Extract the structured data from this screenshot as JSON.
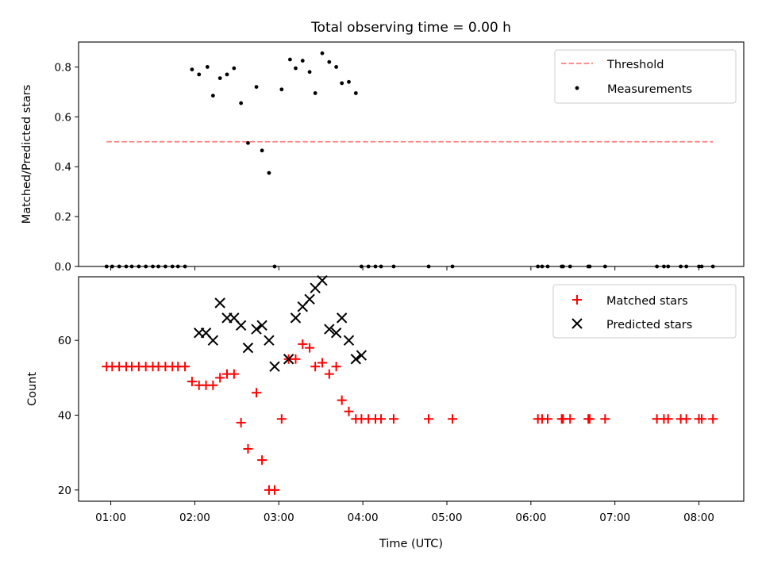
{
  "chart_data": [
    {
      "type": "scatter",
      "title": "Total observing time = 0.00 h",
      "xlabel": "",
      "ylabel": "Matched/Predicted stars",
      "xlim": [
        "00:37",
        "08:32"
      ],
      "ylim": [
        0,
        0.9
      ],
      "yticks": [
        0.0,
        0.2,
        0.4,
        0.6,
        0.8
      ],
      "ytick_labels": [
        "0.0",
        "0.2",
        "0.4",
        "0.6",
        "0.8"
      ],
      "xtick_labels_shown": false,
      "grid": false,
      "legend_position": "top-right",
      "series": [
        {
          "name": "Threshold",
          "kind": "line",
          "style": "dashed",
          "color": "#ff7f7f",
          "x": [
            "00:57",
            "08:10"
          ],
          "y": [
            0.5,
            0.5
          ]
        },
        {
          "name": "Measurements",
          "kind": "scatter",
          "marker": "dot",
          "color": "#000000",
          "x": [
            "00:57",
            "01:01",
            "01:06",
            "01:11",
            "01:15",
            "01:20",
            "01:25",
            "01:30",
            "01:34",
            "01:39",
            "01:44",
            "01:48",
            "01:53",
            "01:58",
            "02:03",
            "02:09",
            "02:13",
            "02:18",
            "02:23",
            "02:28",
            "02:33",
            "02:38",
            "02:44",
            "02:48",
            "02:53",
            "02:57",
            "03:02",
            "03:08",
            "03:12",
            "03:17",
            "03:22",
            "03:26",
            "03:31",
            "03:36",
            "03:41",
            "03:45",
            "03:50",
            "03:55",
            "03:59",
            "04:04",
            "04:09",
            "04:13",
            "04:22",
            "04:47",
            "05:04",
            "06:05",
            "06:08",
            "06:12",
            "06:22",
            "06:23",
            "06:28",
            "06:41",
            "06:42",
            "06:53",
            "07:30",
            "07:35",
            "07:38",
            "07:47",
            "07:51",
            "08:00",
            "08:02",
            "08:10"
          ],
          "y": [
            0,
            0,
            0,
            0,
            0,
            0,
            0,
            0,
            0,
            0,
            0,
            0,
            0,
            0.79,
            0.77,
            0.8,
            0.685,
            0.755,
            0.77,
            0.795,
            0.655,
            0.495,
            0.72,
            0.465,
            0.375,
            0,
            0.71,
            0.83,
            0.795,
            0.825,
            0.78,
            0.695,
            0.855,
            0.82,
            0.8,
            0.735,
            0.74,
            0.695,
            0,
            0,
            0,
            0,
            0,
            0,
            0,
            0,
            0,
            0,
            0,
            0,
            0,
            0,
            0,
            0,
            0,
            0,
            0,
            0,
            0,
            0,
            0,
            0
          ]
        }
      ]
    },
    {
      "type": "scatter",
      "title": "",
      "xlabel": "Time (UTC)",
      "ylabel": "Count",
      "xlim": [
        "00:37",
        "08:32"
      ],
      "ylim": [
        17,
        77
      ],
      "yticks": [
        20,
        40,
        60
      ],
      "ytick_labels": [
        "20",
        "40",
        "60"
      ],
      "xticks": [
        "01:00",
        "02:00",
        "03:00",
        "04:00",
        "05:00",
        "06:00",
        "07:00",
        "08:00"
      ],
      "xtick_labels": [
        "01:00",
        "02:00",
        "03:00",
        "04:00",
        "05:00",
        "06:00",
        "07:00",
        "08:00"
      ],
      "grid": false,
      "legend_position": "top-right",
      "series": [
        {
          "name": "Matched stars",
          "kind": "scatter",
          "marker": "plus",
          "color": "#ff0000",
          "x": [
            "00:57",
            "01:01",
            "01:06",
            "01:11",
            "01:15",
            "01:20",
            "01:25",
            "01:30",
            "01:34",
            "01:39",
            "01:44",
            "01:48",
            "01:53",
            "01:58",
            "02:03",
            "02:08",
            "02:13",
            "02:18",
            "02:23",
            "02:28",
            "02:33",
            "02:38",
            "02:44",
            "02:48",
            "02:53",
            "02:57",
            "03:02",
            "03:07",
            "03:12",
            "03:17",
            "03:22",
            "03:26",
            "03:31",
            "03:36",
            "03:41",
            "03:45",
            "03:50",
            "03:55",
            "03:59",
            "04:04",
            "04:09",
            "04:13",
            "04:22",
            "04:47",
            "05:04",
            "06:05",
            "06:08",
            "06:12",
            "06:22",
            "06:23",
            "06:28",
            "06:41",
            "06:42",
            "06:53",
            "07:30",
            "07:35",
            "07:38",
            "07:47",
            "07:51",
            "08:00",
            "08:02",
            "08:10"
          ],
          "y": [
            53,
            53,
            53,
            53,
            53,
            53,
            53,
            53,
            53,
            53,
            53,
            53,
            53,
            49,
            48,
            48,
            48,
            50,
            51,
            51,
            38,
            31,
            46,
            28,
            20,
            20,
            39,
            55,
            55,
            59,
            58,
            53,
            54,
            51,
            53,
            44,
            41,
            39,
            39,
            39,
            39,
            39,
            39,
            39,
            39,
            39,
            39,
            39,
            39,
            39,
            39,
            39,
            39,
            39,
            39,
            39,
            39,
            39,
            39,
            39,
            39,
            39
          ]
        },
        {
          "name": "Predicted stars",
          "kind": "scatter",
          "marker": "x",
          "color": "#000000",
          "x": [
            "02:03",
            "02:08",
            "02:13",
            "02:18",
            "02:23",
            "02:28",
            "02:33",
            "02:38",
            "02:44",
            "02:48",
            "02:53",
            "02:57",
            "03:07",
            "03:12",
            "03:17",
            "03:22",
            "03:26",
            "03:31",
            "03:36",
            "03:41",
            "03:45",
            "03:50",
            "03:55",
            "03:59"
          ],
          "y": [
            62,
            62,
            60,
            70,
            66,
            66,
            64,
            58,
            63,
            64,
            60,
            53,
            55,
            66,
            69,
            71,
            74,
            76,
            63,
            62,
            66,
            60,
            55,
            56
          ]
        }
      ]
    }
  ]
}
